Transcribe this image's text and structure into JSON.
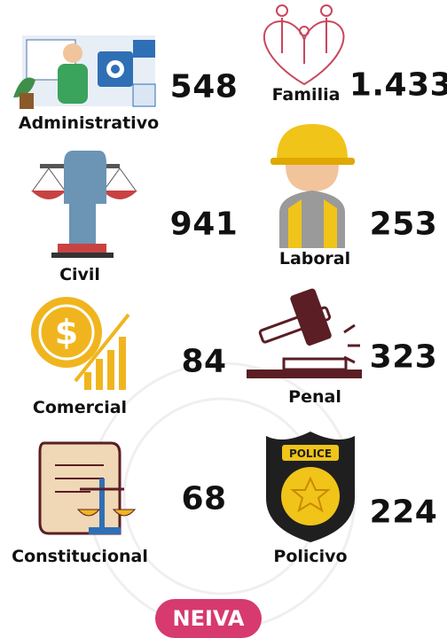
{
  "items": [
    {
      "label": "Administrativo",
      "count": "548"
    },
    {
      "label": "Familia",
      "count": "1.433"
    },
    {
      "label": "Civil",
      "count": "941"
    },
    {
      "label": "Laboral",
      "count": "253"
    },
    {
      "label": "Comercial",
      "count": "84"
    },
    {
      "label": "Penal",
      "count": "323"
    },
    {
      "label": "Constitucional",
      "count": "68"
    },
    {
      "label": "Policivo",
      "count": "224"
    }
  ],
  "footer": {
    "badge": "NEIVA"
  }
}
